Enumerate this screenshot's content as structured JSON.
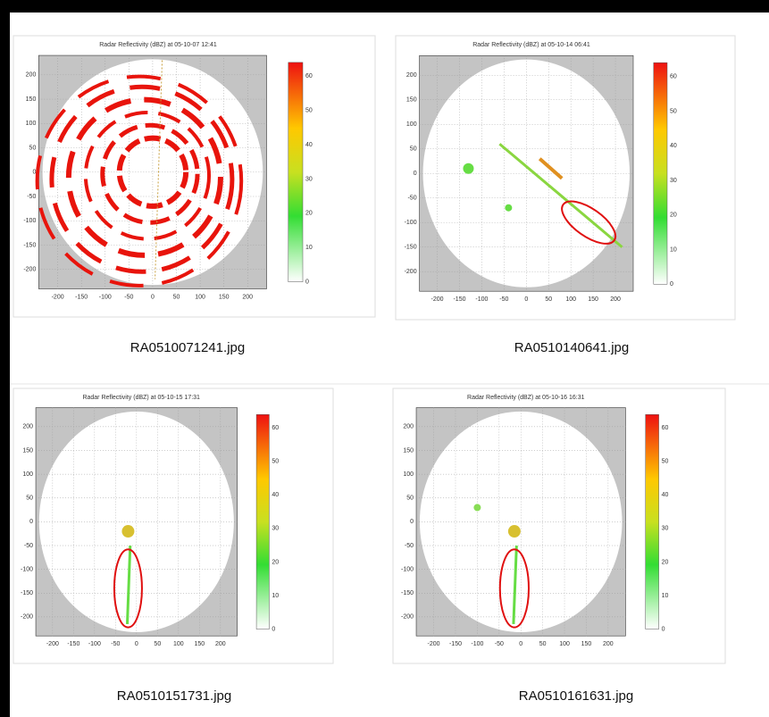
{
  "thumbnails": [
    {
      "title": "Radar Reflectivity (dBZ) at 05-10-07 12:41",
      "filename": "RA0510071241.jpg"
    },
    {
      "title": "Radar Reflectivity (dBZ) at 05-10-14 06:41",
      "filename": "RA0510140641.jpg"
    },
    {
      "title": "Radar Reflectivity (dBZ) at 05-10-15 17:31",
      "filename": "RA0510151731.jpg"
    },
    {
      "title": "Radar Reflectivity (dBZ) at 05-10-16 16:31",
      "filename": "RA0510161631.jpg"
    }
  ],
  "x_ticks": [
    -200,
    -150,
    -100,
    -50,
    0,
    50,
    100,
    150,
    200
  ],
  "y_ticks": [
    200,
    150,
    100,
    50,
    0,
    -50,
    -100,
    -150,
    -200
  ],
  "colorbar_ticks": [
    0,
    10,
    20,
    30,
    40,
    50,
    60
  ]
}
